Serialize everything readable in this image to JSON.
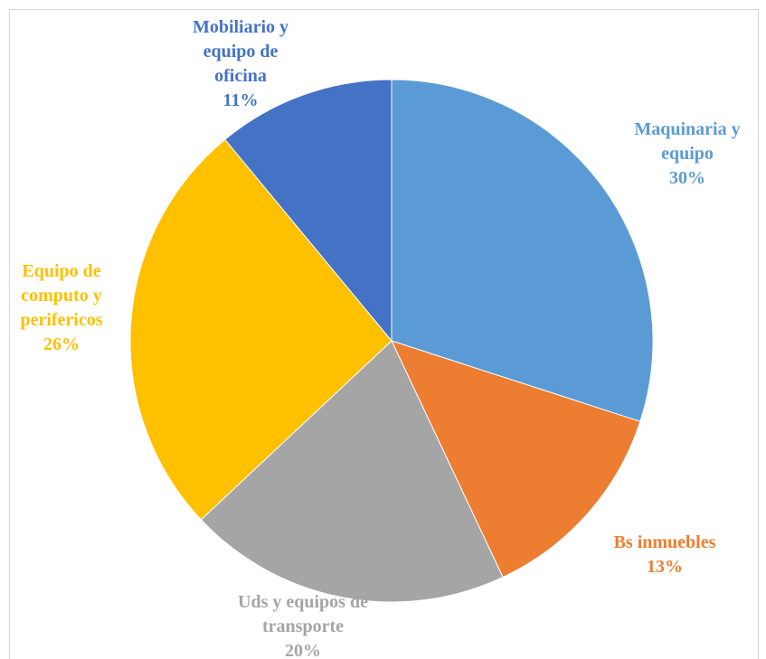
{
  "chart_data": {
    "type": "pie",
    "categories": [
      "Maquinaria y equipo",
      "Bs inmuebles",
      "Uds y equipos de transporte",
      "Equipo de computo y perifericos",
      "Mobiliario y equipo de oficina"
    ],
    "values": [
      30,
      13,
      20,
      26,
      11
    ],
    "value_labels": [
      "30%",
      "13%",
      "20%",
      "26%",
      "11%"
    ],
    "colors": [
      "#5B9BD5",
      "#ED7D31",
      "#A5A5A5",
      "#FFC000",
      "#4472C4"
    ]
  }
}
